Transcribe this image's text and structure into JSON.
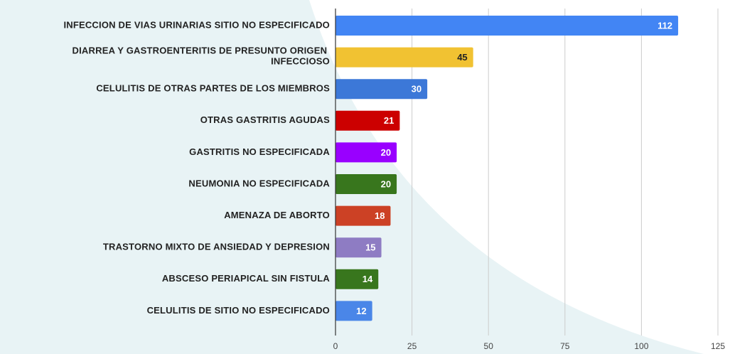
{
  "chart_data": {
    "type": "bar",
    "orientation": "horizontal",
    "categories": [
      "INFECCION DE VIAS URINARIAS SITIO NO ESPECIFICADO",
      "DIARREA Y GASTROENTERITIS DE PRESUNTO ORIGEN INFECCIOSO",
      "CELULITIS DE OTRAS PARTES DE LOS MIEMBROS",
      "OTRAS GASTRITIS AGUDAS",
      "GASTRITIS NO ESPECIFICADA",
      "NEUMONIA NO ESPECIFICADA",
      "AMENAZA DE ABORTO",
      "TRASTORNO MIXTO DE ANSIEDAD Y DEPRESION",
      "ABSCESO PERIAPICAL SIN FISTULA",
      "CELULITIS DE SITIO NO ESPECIFICADO"
    ],
    "values": [
      112,
      45,
      30,
      21,
      20,
      20,
      18,
      15,
      14,
      12
    ],
    "colors": [
      "#4285f4",
      "#f1c232",
      "#3c78d8",
      "#cc0000",
      "#9900ff",
      "#38761d",
      "#cc4125",
      "#8e7cc3",
      "#38761d",
      "#4a86e8"
    ],
    "xlim": [
      0,
      125
    ],
    "xticks": [
      0,
      25,
      50,
      75,
      100,
      125
    ],
    "grid": true
  }
}
